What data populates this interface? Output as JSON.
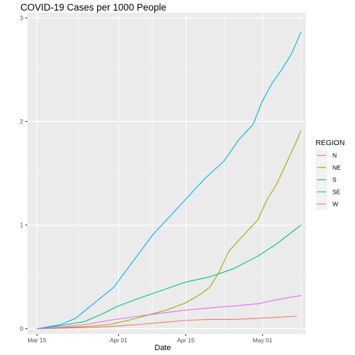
{
  "chart_data": {
    "type": "line",
    "title": "COVID-19 Cases per 1000 People",
    "xlabel": "Date",
    "ylabel": "",
    "x_tick_labels": [
      "Mar 15",
      "Apr 01",
      "Apr 15",
      "May 01"
    ],
    "x_tick_dates": [
      "2020-03-15",
      "2020-04-01",
      "2020-04-15",
      "2020-05-01"
    ],
    "y_ticks": [
      0,
      1,
      2,
      3
    ],
    "y_tick_labels": [
      "0",
      "1",
      "2",
      "3"
    ],
    "xlim": [
      "2020-03-13",
      "2020-05-10"
    ],
    "ylim": [
      -0.05,
      3.05
    ],
    "grid": true,
    "legend": {
      "title": "REGION",
      "placement": "right"
    },
    "series": [
      {
        "name": "N",
        "color": "#F8766D",
        "points": [
          [
            "2020-03-15",
            0.0
          ],
          [
            "2020-03-20",
            0.005
          ],
          [
            "2020-03-25",
            0.01
          ],
          [
            "2020-03-30",
            0.02
          ],
          [
            "2020-04-05",
            0.04
          ],
          [
            "2020-04-10",
            0.06
          ],
          [
            "2020-04-15",
            0.08
          ],
          [
            "2020-04-20",
            0.09
          ],
          [
            "2020-04-25",
            0.09
          ],
          [
            "2020-04-30",
            0.1
          ],
          [
            "2020-05-04",
            0.11
          ],
          [
            "2020-05-08",
            0.12
          ]
        ]
      },
      {
        "name": "NE",
        "color": "#A3A500",
        "points": [
          [
            "2020-03-15",
            0.0
          ],
          [
            "2020-03-20",
            0.01
          ],
          [
            "2020-03-25",
            0.02
          ],
          [
            "2020-03-30",
            0.04
          ],
          [
            "2020-04-03",
            0.08
          ],
          [
            "2020-04-07",
            0.13
          ],
          [
            "2020-04-11",
            0.18
          ],
          [
            "2020-04-15",
            0.25
          ],
          [
            "2020-04-18",
            0.33
          ],
          [
            "2020-04-20",
            0.4
          ],
          [
            "2020-04-22",
            0.55
          ],
          [
            "2020-04-24",
            0.75
          ],
          [
            "2020-04-26",
            0.85
          ],
          [
            "2020-04-28",
            0.95
          ],
          [
            "2020-04-30",
            1.05
          ],
          [
            "2020-05-02",
            1.25
          ],
          [
            "2020-05-04",
            1.4
          ],
          [
            "2020-05-06",
            1.6
          ],
          [
            "2020-05-08",
            1.8
          ],
          [
            "2020-05-09",
            1.91
          ]
        ]
      },
      {
        "name": "S",
        "color": "#00BF7D",
        "points": [
          [
            "2020-03-15",
            0.0
          ],
          [
            "2020-03-20",
            0.03
          ],
          [
            "2020-03-25",
            0.07
          ],
          [
            "2020-03-28",
            0.13
          ],
          [
            "2020-04-01",
            0.22
          ],
          [
            "2020-04-05",
            0.29
          ],
          [
            "2020-04-10",
            0.37
          ],
          [
            "2020-04-15",
            0.45
          ],
          [
            "2020-04-20",
            0.5
          ],
          [
            "2020-04-25",
            0.58
          ],
          [
            "2020-04-30",
            0.7
          ],
          [
            "2020-05-04",
            0.82
          ],
          [
            "2020-05-09",
            1.0
          ]
        ]
      },
      {
        "name": "SE",
        "color": "#00B0F6",
        "points": [
          [
            "2020-03-15",
            0.0
          ],
          [
            "2020-03-20",
            0.04
          ],
          [
            "2020-03-23",
            0.1
          ],
          [
            "2020-03-27",
            0.25
          ],
          [
            "2020-03-31",
            0.4
          ],
          [
            "2020-04-04",
            0.65
          ],
          [
            "2020-04-08",
            0.9
          ],
          [
            "2020-04-12",
            1.1
          ],
          [
            "2020-04-15",
            1.25
          ],
          [
            "2020-04-19",
            1.45
          ],
          [
            "2020-04-23",
            1.62
          ],
          [
            "2020-04-26",
            1.82
          ],
          [
            "2020-04-29",
            1.97
          ],
          [
            "2020-05-01",
            2.2
          ],
          [
            "2020-05-03",
            2.37
          ],
          [
            "2020-05-05",
            2.5
          ],
          [
            "2020-05-07",
            2.65
          ],
          [
            "2020-05-09",
            2.86
          ]
        ]
      },
      {
        "name": "W",
        "color": "#E76BF3",
        "points": [
          [
            "2020-03-15",
            0.0
          ],
          [
            "2020-03-20",
            0.015
          ],
          [
            "2020-03-25",
            0.04
          ],
          [
            "2020-03-30",
            0.08
          ],
          [
            "2020-04-05",
            0.12
          ],
          [
            "2020-04-10",
            0.15
          ],
          [
            "2020-04-15",
            0.18
          ],
          [
            "2020-04-20",
            0.2
          ],
          [
            "2020-04-25",
            0.22
          ],
          [
            "2020-04-30",
            0.24
          ],
          [
            "2020-05-04",
            0.28
          ],
          [
            "2020-05-09",
            0.32
          ]
        ]
      }
    ]
  }
}
